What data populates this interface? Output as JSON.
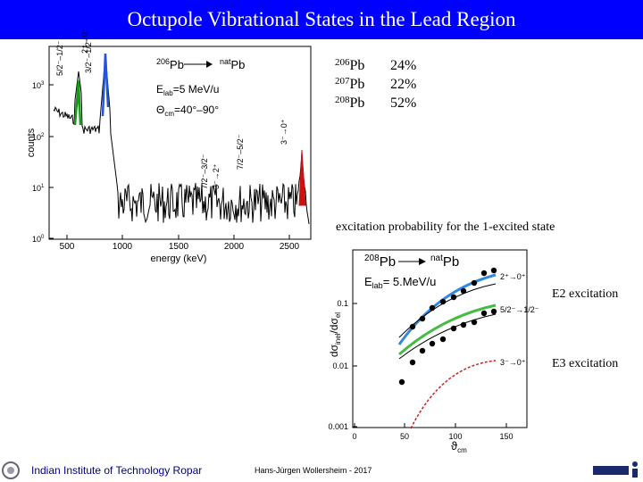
{
  "header": {
    "title": "Octupole Vibrational States in the Lead Region"
  },
  "spectrum": {
    "reaction": {
      "target_mass": "206",
      "target": "Pb",
      "beam_mass": "nat",
      "beam": "Pb"
    },
    "energy": {
      "symbol": "E",
      "sub": "lab",
      "rest": "=5 MeV/u"
    },
    "angle": {
      "symbol": "Θ",
      "sub": "cm",
      "rest": "=40°–90°"
    },
    "peak_labels": [
      "5/2⁻–1/2⁻",
      "2⁺→0⁺",
      "3/2⁻–1/2⁻",
      "7/2⁻–3/2⁻",
      "3⁻→2⁺",
      "7/2⁻–5/2⁻",
      "3⁻→0⁺"
    ],
    "y_label": "counts",
    "y_tick_labels": [
      {
        "base": "10",
        "exp": "3"
      },
      {
        "base": "10",
        "exp": "2"
      },
      {
        "base": "10",
        "exp": "1"
      },
      {
        "base": "10",
        "exp": "0"
      }
    ],
    "x_label": "energy (keV)",
    "x_tick_labels": [
      "500",
      "1000",
      "1500",
      "2000",
      "2500"
    ]
  },
  "isotopes": [
    {
      "mass": "206",
      "symbol": "Pb",
      "share": "24%"
    },
    {
      "mass": "207",
      "symbol": "Pb",
      "share": "22%"
    },
    {
      "mass": "208",
      "symbol": "Pb",
      "share": "52%"
    }
  ],
  "caption": "excitation probability for the 1-excited state",
  "probability_plot": {
    "reaction": {
      "target_mass": "208",
      "target": "Pb",
      "beam_mass": "nat",
      "beam": "Pb"
    },
    "energy": {
      "symbol": "E",
      "sub": "lab",
      "rest": "= 5.MeV/u"
    },
    "y_label": {
      "main": "dσ",
      "sub": "inel",
      "mid": "/dσ",
      "sub2": "el"
    },
    "y_tick_labels": [
      "0.1",
      "0.01",
      "0.001"
    ],
    "x_label": {
      "symbol": "ϑ",
      "sub": "cm"
    },
    "x_tick_labels": [
      "0",
      "50",
      "100",
      "150"
    ],
    "curve_labels": [
      "2⁺→0⁺",
      "5/2⁻→1/2⁻",
      "3⁻→0⁺"
    ]
  },
  "side_labels": [
    "E2 excitation",
    "E3 excitation"
  ],
  "footer": {
    "institute": "Indian Institute of Technology Ropar",
    "author": "Hans-Jürgen Wollersheim - 2017"
  }
}
